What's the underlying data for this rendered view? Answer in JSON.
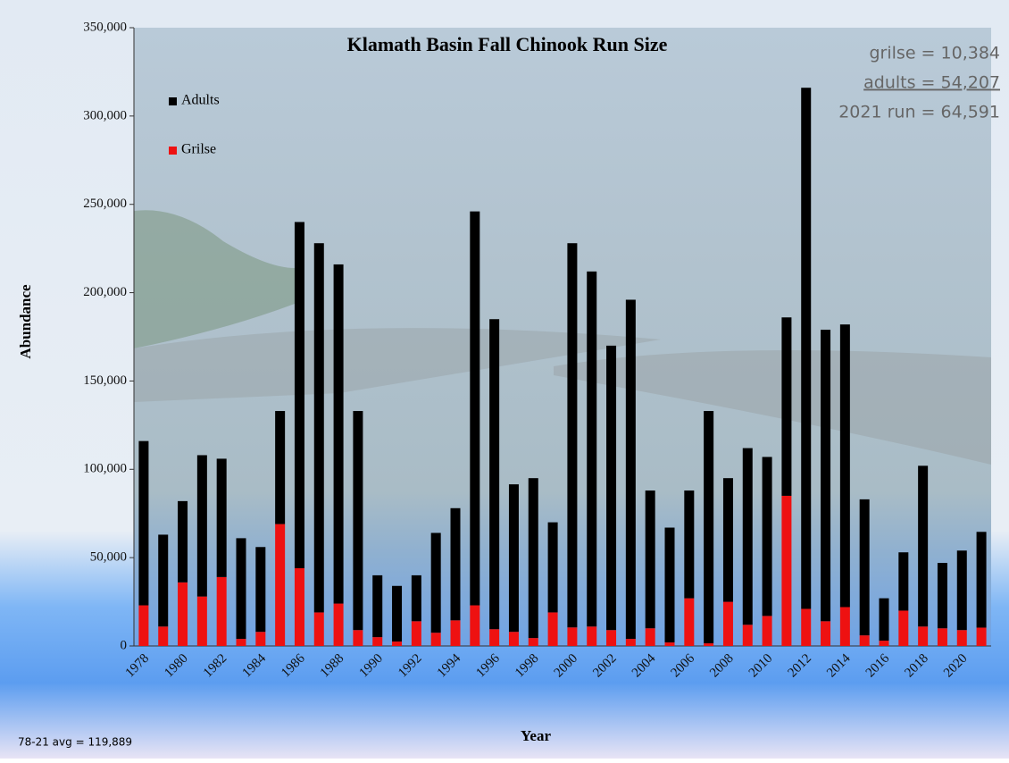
{
  "chart_data": {
    "type": "stacked-bar",
    "title": "Klamath Basin Fall Chinook Run Size",
    "x_label": "Year",
    "y_label": "Abundance",
    "categories": [
      "1978",
      null,
      "1980",
      null,
      "1982",
      null,
      "1984",
      null,
      "1986",
      null,
      "1988",
      null,
      "1990",
      null,
      "1992",
      null,
      "1994",
      null,
      "1996",
      null,
      "1998",
      null,
      "2000",
      null,
      "2002",
      null,
      "2004",
      null,
      "2006",
      null,
      "2008",
      null,
      "2010",
      null,
      "2012",
      null,
      "2014",
      null,
      "2016",
      null,
      "2018",
      null,
      "2020",
      null
    ],
    "series": [
      {
        "name": "Grilse",
        "color": "#ee1111",
        "values": [
          23000,
          11000,
          36000,
          28000,
          39000,
          4000,
          8000,
          69000,
          44000,
          19000,
          24000,
          9000,
          5000,
          2500,
          14000,
          7500,
          14500,
          23000,
          9500,
          8000,
          4500,
          19000,
          10500,
          11000,
          9000,
          4000,
          10000,
          2000,
          27000,
          1500,
          25000,
          12000,
          17000,
          85000,
          21000,
          14000,
          22000,
          6000,
          3000,
          20000,
          11000,
          10000,
          9000,
          10384
        ]
      },
      {
        "name": "Adults",
        "color": "#000000",
        "values": [
          93000,
          52000,
          46000,
          80000,
          67000,
          57000,
          48000,
          64000,
          196000,
          209000,
          192000,
          124000,
          35000,
          31500,
          26000,
          56500,
          63500,
          223000,
          175500,
          83500,
          90500,
          51000,
          217500,
          201000,
          161000,
          192000,
          78000,
          65000,
          61000,
          131500,
          70000,
          100000,
          90000,
          101000,
          295000,
          165000,
          160000,
          77000,
          24000,
          33000,
          91000,
          37000,
          45000,
          54207
        ]
      }
    ],
    "ylim": [
      0,
      350000
    ],
    "yticks": [
      0,
      {
        "value": 50000,
        "label": "50,000"
      },
      {
        "value": 100000,
        "label": "100,000"
      },
      {
        "value": 150000,
        "label": "150,000"
      },
      {
        "value": 200000,
        "label": "200,000"
      },
      {
        "value": 250000,
        "label": "250,000"
      },
      {
        "value": 300000,
        "label": "300,000"
      },
      {
        "value": 350000,
        "label": "350,000"
      }
    ],
    "annotations": [
      "grilse =   10,384",
      "adults = 54,207",
      "2021 run = 64,591",
      "78-21  avg = 119,889"
    ]
  }
}
